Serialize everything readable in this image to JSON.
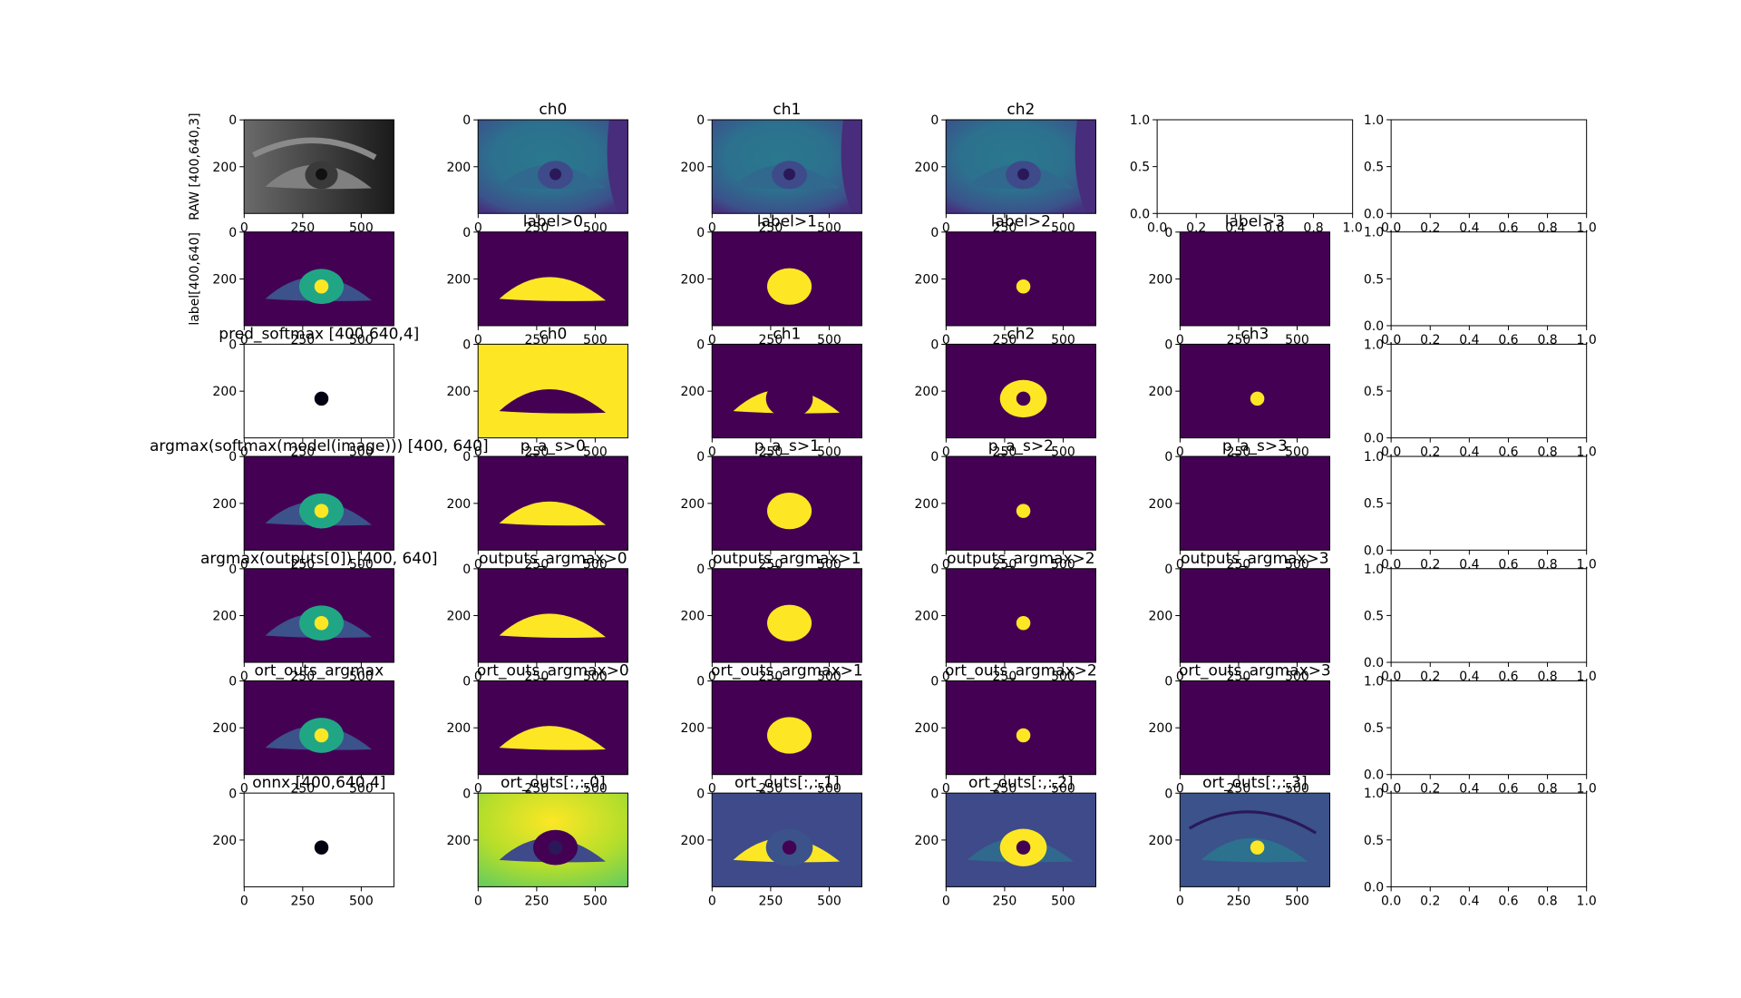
{
  "chart_data": [
    {
      "type": "image",
      "ylabel": "RAW [400,640,3]",
      "xlim": [
        -0.5,
        639.5
      ],
      "ylim": [
        399.5,
        -0.5
      ],
      "xticks": [
        0,
        250,
        500
      ],
      "yticks": [
        0,
        200
      ]
    },
    {
      "type": "image",
      "title": "ch0",
      "xlim": [
        -0.5,
        639.5
      ],
      "ylim": [
        399.5,
        -0.5
      ],
      "xticks": [
        0,
        250,
        500
      ],
      "yticks": [
        0,
        200
      ]
    },
    {
      "type": "image",
      "title": "ch1",
      "xlim": [
        -0.5,
        639.5
      ],
      "ylim": [
        399.5,
        -0.5
      ],
      "xticks": [
        0,
        250,
        500
      ],
      "yticks": [
        0,
        200
      ]
    },
    {
      "type": "image",
      "title": "ch2",
      "xlim": [
        -0.5,
        639.5
      ],
      "ylim": [
        399.5,
        -0.5
      ],
      "xticks": [
        0,
        250,
        500
      ],
      "yticks": [
        0,
        200
      ]
    },
    {
      "type": "empty",
      "xlim": [
        0,
        1
      ],
      "ylim": [
        0,
        1
      ],
      "xticks": [
        {
          "value": 0,
          "label": "0.0"
        },
        0.2,
        0.4,
        0.6,
        0.8,
        {
          "value": 1,
          "label": "1.0"
        }
      ],
      "yticks": [
        {
          "value": 0,
          "label": "0.0"
        },
        0.5,
        {
          "value": 1,
          "label": "1.0"
        }
      ]
    },
    {
      "type": "empty",
      "xlim": [
        0,
        1
      ],
      "ylim": [
        0,
        1
      ],
      "xticks": [
        {
          "value": 0,
          "label": "0.0"
        },
        0.2,
        0.4,
        0.6,
        0.8,
        {
          "value": 1,
          "label": "1.0"
        }
      ],
      "yticks": [
        {
          "value": 0,
          "label": "0.0"
        },
        0.5,
        {
          "value": 1,
          "label": "1.0"
        }
      ]
    },
    {
      "type": "image",
      "ylabel": "label[400,640]",
      "xlim": [
        -0.5,
        639.5
      ],
      "ylim": [
        399.5,
        -0.5
      ],
      "xticks": [
        0,
        250,
        500
      ],
      "yticks": [
        0,
        200
      ]
    },
    {
      "type": "image",
      "title": "label>0",
      "xlim": [
        -0.5,
        639.5
      ],
      "ylim": [
        399.5,
        -0.5
      ],
      "xticks": [
        0,
        250,
        500
      ],
      "yticks": [
        0,
        200
      ]
    },
    {
      "type": "image",
      "title": "label>1",
      "xlim": [
        -0.5,
        639.5
      ],
      "ylim": [
        399.5,
        -0.5
      ],
      "xticks": [
        0,
        250,
        500
      ],
      "yticks": [
        0,
        200
      ]
    },
    {
      "type": "image",
      "title": "label>2",
      "xlim": [
        -0.5,
        639.5
      ],
      "ylim": [
        399.5,
        -0.5
      ],
      "xticks": [
        0,
        250,
        500
      ],
      "yticks": [
        0,
        200
      ]
    },
    {
      "type": "image",
      "title": "label>3",
      "xlim": [
        -0.5,
        639.5
      ],
      "ylim": [
        399.5,
        -0.5
      ],
      "xticks": [
        0,
        250,
        500
      ],
      "yticks": [
        0,
        200
      ]
    },
    {
      "type": "empty",
      "xlim": [
        0,
        1
      ],
      "ylim": [
        0,
        1
      ],
      "xticks": [
        {
          "value": 0,
          "label": "0.0"
        },
        0.2,
        0.4,
        0.6,
        0.8,
        {
          "value": 1,
          "label": "1.0"
        }
      ],
      "yticks": [
        {
          "value": 0,
          "label": "0.0"
        },
        0.5,
        {
          "value": 1,
          "label": "1.0"
        }
      ]
    },
    {
      "type": "image",
      "title": "pred_softmax [400,640,4]",
      "xlim": [
        -0.5,
        639.5
      ],
      "ylim": [
        399.5,
        -0.5
      ],
      "xticks": [
        0,
        250,
        500
      ],
      "yticks": [
        0,
        200
      ]
    },
    {
      "type": "image",
      "title": "ch0",
      "xlim": [
        -0.5,
        639.5
      ],
      "ylim": [
        399.5,
        -0.5
      ],
      "xticks": [
        0,
        250,
        500
      ],
      "yticks": [
        0,
        200
      ]
    },
    {
      "type": "image",
      "title": "ch1",
      "xlim": [
        -0.5,
        639.5
      ],
      "ylim": [
        399.5,
        -0.5
      ],
      "xticks": [
        0,
        250,
        500
      ],
      "yticks": [
        0,
        200
      ]
    },
    {
      "type": "image",
      "title": "ch2",
      "xlim": [
        -0.5,
        639.5
      ],
      "ylim": [
        399.5,
        -0.5
      ],
      "xticks": [
        0,
        250,
        500
      ],
      "yticks": [
        0,
        200
      ]
    },
    {
      "type": "image",
      "title": "ch3",
      "xlim": [
        -0.5,
        639.5
      ],
      "ylim": [
        399.5,
        -0.5
      ],
      "xticks": [
        0,
        250,
        500
      ],
      "yticks": [
        0,
        200
      ]
    },
    {
      "type": "empty",
      "xlim": [
        0,
        1
      ],
      "ylim": [
        0,
        1
      ],
      "xticks": [
        {
          "value": 0,
          "label": "0.0"
        },
        0.2,
        0.4,
        0.6,
        0.8,
        {
          "value": 1,
          "label": "1.0"
        }
      ],
      "yticks": [
        {
          "value": 0,
          "label": "0.0"
        },
        0.5,
        {
          "value": 1,
          "label": "1.0"
        }
      ]
    },
    {
      "type": "image",
      "title": "argmax(softmax(model(image))) [400, 640]",
      "xlim": [
        -0.5,
        639.5
      ],
      "ylim": [
        399.5,
        -0.5
      ],
      "xticks": [
        0,
        250,
        500
      ],
      "yticks": [
        0,
        200
      ]
    },
    {
      "type": "image",
      "title": "p_a_s>0",
      "xlim": [
        -0.5,
        639.5
      ],
      "ylim": [
        399.5,
        -0.5
      ],
      "xticks": [
        0,
        250,
        500
      ],
      "yticks": [
        0,
        200
      ]
    },
    {
      "type": "image",
      "title": "p_a_s>1",
      "xlim": [
        -0.5,
        639.5
      ],
      "ylim": [
        399.5,
        -0.5
      ],
      "xticks": [
        0,
        250,
        500
      ],
      "yticks": [
        0,
        200
      ]
    },
    {
      "type": "image",
      "title": "p_a_s>2",
      "xlim": [
        -0.5,
        639.5
      ],
      "ylim": [
        399.5,
        -0.5
      ],
      "xticks": [
        0,
        250,
        500
      ],
      "yticks": [
        0,
        200
      ]
    },
    {
      "type": "image",
      "title": "p_a_s>3",
      "xlim": [
        -0.5,
        639.5
      ],
      "ylim": [
        399.5,
        -0.5
      ],
      "xticks": [
        0,
        250,
        500
      ],
      "yticks": [
        0,
        200
      ]
    },
    {
      "type": "empty",
      "xlim": [
        0,
        1
      ],
      "ylim": [
        0,
        1
      ],
      "xticks": [
        {
          "value": 0,
          "label": "0.0"
        },
        0.2,
        0.4,
        0.6,
        0.8,
        {
          "value": 1,
          "label": "1.0"
        }
      ],
      "yticks": [
        {
          "value": 0,
          "label": "0.0"
        },
        0.5,
        {
          "value": 1,
          "label": "1.0"
        }
      ]
    },
    {
      "type": "image",
      "title": "argmax(outputs[0]) [400, 640]",
      "xlim": [
        -0.5,
        639.5
      ],
      "ylim": [
        399.5,
        -0.5
      ],
      "xticks": [
        0,
        250,
        500
      ],
      "yticks": [
        0,
        200
      ]
    },
    {
      "type": "image",
      "title": "outputs_argmax>0",
      "xlim": [
        -0.5,
        639.5
      ],
      "ylim": [
        399.5,
        -0.5
      ],
      "xticks": [
        0,
        250,
        500
      ],
      "yticks": [
        0,
        200
      ]
    },
    {
      "type": "image",
      "title": "outputs_argmax>1",
      "xlim": [
        -0.5,
        639.5
      ],
      "ylim": [
        399.5,
        -0.5
      ],
      "xticks": [
        0,
        250,
        500
      ],
      "yticks": [
        0,
        200
      ]
    },
    {
      "type": "image",
      "title": "outputs_argmax>2",
      "xlim": [
        -0.5,
        639.5
      ],
      "ylim": [
        399.5,
        -0.5
      ],
      "xticks": [
        0,
        250,
        500
      ],
      "yticks": [
        0,
        200
      ]
    },
    {
      "type": "image",
      "title": "outputs_argmax>3",
      "xlim": [
        -0.5,
        639.5
      ],
      "ylim": [
        399.5,
        -0.5
      ],
      "xticks": [
        0,
        250,
        500
      ],
      "yticks": [
        0,
        200
      ]
    },
    {
      "type": "empty",
      "xlim": [
        0,
        1
      ],
      "ylim": [
        0,
        1
      ],
      "xticks": [
        {
          "value": 0,
          "label": "0.0"
        },
        0.2,
        0.4,
        0.6,
        0.8,
        {
          "value": 1,
          "label": "1.0"
        }
      ],
      "yticks": [
        {
          "value": 0,
          "label": "0.0"
        },
        0.5,
        {
          "value": 1,
          "label": "1.0"
        }
      ]
    },
    {
      "type": "image",
      "title": "ort_outs_argmax",
      "xlim": [
        -0.5,
        639.5
      ],
      "ylim": [
        399.5,
        -0.5
      ],
      "xticks": [
        0,
        250,
        500
      ],
      "yticks": [
        0,
        200
      ]
    },
    {
      "type": "image",
      "title": "ort_outs_argmax>0",
      "xlim": [
        -0.5,
        639.5
      ],
      "ylim": [
        399.5,
        -0.5
      ],
      "xticks": [
        0,
        250,
        500
      ],
      "yticks": [
        0,
        200
      ]
    },
    {
      "type": "image",
      "title": "ort_outs_argmax>1",
      "xlim": [
        -0.5,
        639.5
      ],
      "ylim": [
        399.5,
        -0.5
      ],
      "xticks": [
        0,
        250,
        500
      ],
      "yticks": [
        0,
        200
      ]
    },
    {
      "type": "image",
      "title": "ort_outs_argmax>2",
      "xlim": [
        -0.5,
        639.5
      ],
      "ylim": [
        399.5,
        -0.5
      ],
      "xticks": [
        0,
        250,
        500
      ],
      "yticks": [
        0,
        200
      ]
    },
    {
      "type": "image",
      "title": "ort_outs_argmax>3",
      "xlim": [
        -0.5,
        639.5
      ],
      "ylim": [
        399.5,
        -0.5
      ],
      "xticks": [
        0,
        250,
        500
      ],
      "yticks": [
        0,
        200
      ]
    },
    {
      "type": "empty",
      "xlim": [
        0,
        1
      ],
      "ylim": [
        0,
        1
      ],
      "xticks": [
        {
          "value": 0,
          "label": "0.0"
        },
        0.2,
        0.4,
        0.6,
        0.8,
        {
          "value": 1,
          "label": "1.0"
        }
      ],
      "yticks": [
        {
          "value": 0,
          "label": "0.0"
        },
        0.5,
        {
          "value": 1,
          "label": "1.0"
        }
      ]
    },
    {
      "type": "image",
      "title": "onnx [400,640,4]",
      "xlim": [
        -0.5,
        639.5
      ],
      "ylim": [
        399.5,
        -0.5
      ],
      "xticks": [
        0,
        250,
        500
      ],
      "yticks": [
        0,
        200
      ]
    },
    {
      "type": "image",
      "title": "ort_outs[:,:,0]",
      "xlim": [
        -0.5,
        639.5
      ],
      "ylim": [
        399.5,
        -0.5
      ],
      "xticks": [
        0,
        250,
        500
      ],
      "yticks": [
        0,
        200
      ]
    },
    {
      "type": "image",
      "title": "ort_outs[:,:,1]",
      "xlim": [
        -0.5,
        639.5
      ],
      "ylim": [
        399.5,
        -0.5
      ],
      "xticks": [
        0,
        250,
        500
      ],
      "yticks": [
        0,
        200
      ]
    },
    {
      "type": "image",
      "title": "ort_outs[:,:,2]",
      "xlim": [
        -0.5,
        639.5
      ],
      "ylim": [
        399.5,
        -0.5
      ],
      "xticks": [
        0,
        250,
        500
      ],
      "yticks": [
        0,
        200
      ]
    },
    {
      "type": "image",
      "title": "ort_outs[:,:,3]",
      "xlim": [
        -0.5,
        639.5
      ],
      "ylim": [
        399.5,
        -0.5
      ],
      "xticks": [
        0,
        250,
        500
      ],
      "yticks": [
        0,
        200
      ]
    },
    {
      "type": "empty",
      "xlim": [
        0,
        1
      ],
      "ylim": [
        0,
        1
      ],
      "xticks": [
        {
          "value": 0,
          "label": "0.0"
        },
        0.2,
        0.4,
        0.6,
        0.8,
        {
          "value": 1,
          "label": "1.0"
        }
      ],
      "yticks": [
        {
          "value": 0,
          "label": "0.0"
        },
        0.5,
        {
          "value": 1,
          "label": "1.0"
        }
      ]
    }
  ]
}
